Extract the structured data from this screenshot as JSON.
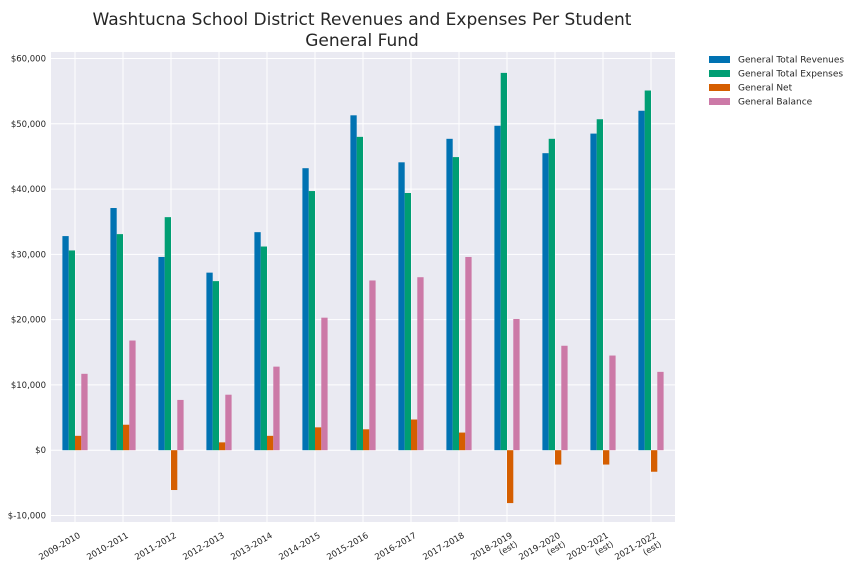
{
  "chart_data": {
    "type": "bar",
    "title": "Washtucna School District Revenues and Expenses Per Student",
    "subtitle": "General Fund",
    "xlabel": "",
    "ylabel": "",
    "ylim": [
      -11000,
      61000
    ],
    "yticks": [
      -10000,
      0,
      10000,
      20000,
      30000,
      40000,
      50000,
      60000
    ],
    "ytick_labels": [
      "$-10,000",
      "$0",
      "$10,000",
      "$20,000",
      "$30,000",
      "$40,000",
      "$50,000",
      "$60,000"
    ],
    "grid": true,
    "legend_position": "outside-top-right",
    "categories": [
      [
        "2009-2010"
      ],
      [
        "2010-2011"
      ],
      [
        "2011-2012"
      ],
      [
        "2012-2013"
      ],
      [
        "2013-2014"
      ],
      [
        "2014-2015"
      ],
      [
        "2015-2016"
      ],
      [
        "2016-2017"
      ],
      [
        "2017-2018"
      ],
      [
        "2018-2019",
        "(est)"
      ],
      [
        "2019-2020",
        "(est)"
      ],
      [
        "2020-2021",
        "(est)"
      ],
      [
        "2021-2022",
        "(est)"
      ]
    ],
    "series": [
      {
        "name": "General Total Revenues",
        "color": "#0072b2",
        "values": [
          32800,
          37100,
          29600,
          27200,
          33400,
          43200,
          51300,
          44100,
          47700,
          49700,
          45500,
          48500,
          52000
        ]
      },
      {
        "name": "General Total Expenses",
        "color": "#009e73",
        "values": [
          30600,
          33100,
          35700,
          25900,
          31200,
          39700,
          48000,
          39400,
          44900,
          57800,
          47700,
          50700,
          55100
        ]
      },
      {
        "name": "General Net",
        "color": "#d55e00",
        "values": [
          2200,
          3900,
          -6100,
          1200,
          2200,
          3500,
          3200,
          4700,
          2700,
          -8100,
          -2200,
          -2200,
          -3300
        ]
      },
      {
        "name": "General Balance",
        "color": "#cc79a7",
        "values": [
          11700,
          16800,
          7700,
          8500,
          12800,
          20300,
          26000,
          26500,
          29600,
          20100,
          16000,
          14500,
          12000
        ]
      }
    ]
  }
}
